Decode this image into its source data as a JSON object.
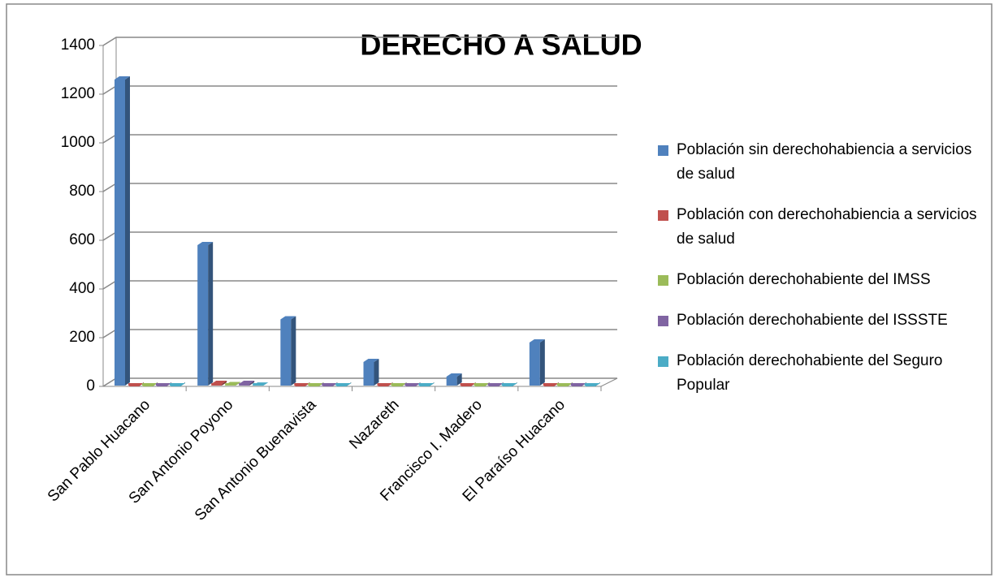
{
  "chart_data": {
    "type": "bar3d",
    "title": "DERECHO A SALUD",
    "categories": [
      "San Pablo Huacano",
      "San Antonio Poyono",
      "San Antonio Buenavista",
      "Nazareth",
      "Francisco I. Madero",
      "El Paraíso Huacano"
    ],
    "series": [
      {
        "name": "Población sin derechohabiencia a servicios de salud",
        "color": "#4f81bd",
        "values": [
          1260,
          580,
          275,
          100,
          40,
          180
        ]
      },
      {
        "name": "Población con derechohabiencia a servicios de salud",
        "color": "#c0504d",
        "values": [
          0,
          10,
          0,
          0,
          0,
          0
        ]
      },
      {
        "name": "Población derechohabiente del IMSS",
        "color": "#9bbb59",
        "values": [
          0,
          5,
          0,
          0,
          0,
          0
        ]
      },
      {
        "name": "Población derechohabiente del ISSSTE",
        "color": "#8064a2",
        "values": [
          0,
          10,
          0,
          0,
          0,
          0
        ]
      },
      {
        "name": "Población derechohabiente del Seguro Popular",
        "color": "#4bacc6",
        "values": [
          0,
          3,
          0,
          0,
          0,
          0
        ]
      }
    ],
    "ylim": [
      0,
      1400
    ],
    "yticks": [
      0,
      200,
      400,
      600,
      800,
      1000,
      1200,
      1400
    ],
    "grid": true,
    "legend": "right"
  }
}
